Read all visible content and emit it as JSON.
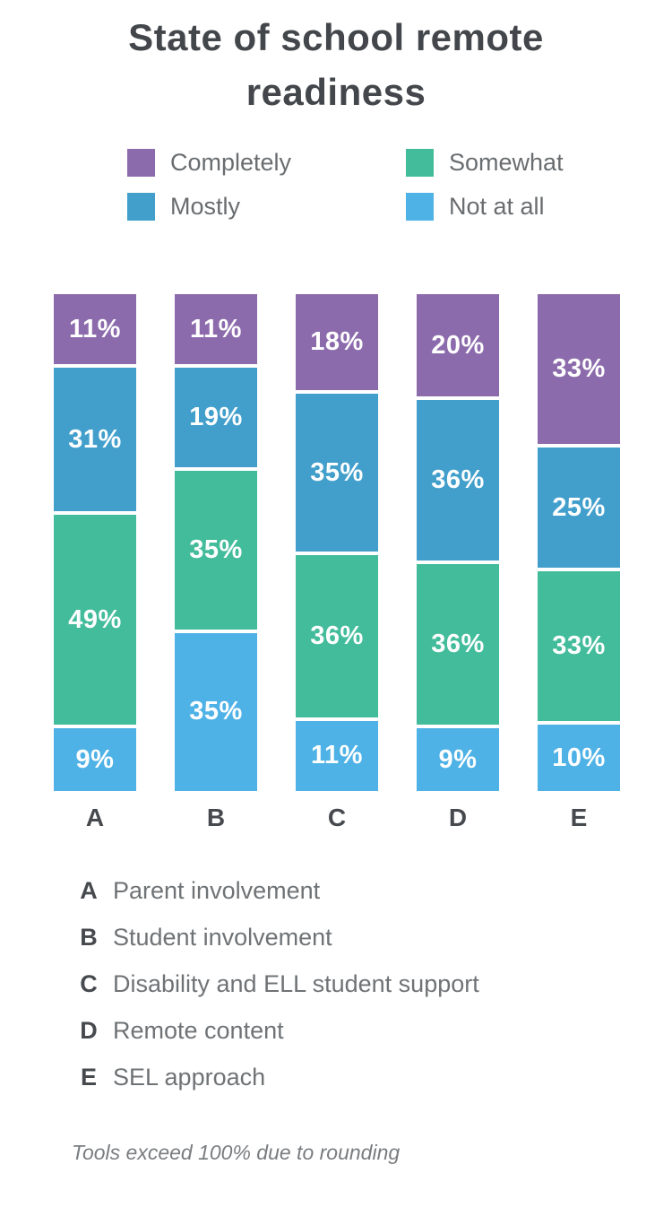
{
  "title": "State of school remote readiness",
  "legend": {
    "columns": [
      [
        {
          "label": "Completely",
          "color": "#8c6bac"
        },
        {
          "label": "Mostly",
          "color": "#429fcc"
        }
      ],
      [
        {
          "label": "Somewhat",
          "color": "#43bc9b"
        },
        {
          "label": "Not at all",
          "color": "#4fb2e6"
        }
      ]
    ]
  },
  "chart_data": {
    "type": "bar",
    "stacked": true,
    "orientation": "vertical",
    "title": "State of school remote readiness",
    "categories": [
      "A",
      "B",
      "C",
      "D",
      "E"
    ],
    "series": [
      {
        "name": "Completely",
        "color": "#8c6bac",
        "values": [
          11,
          11,
          18,
          20,
          33
        ]
      },
      {
        "name": "Mostly",
        "color": "#429fcc",
        "values": [
          31,
          19,
          35,
          36,
          25
        ]
      },
      {
        "name": "Somewhat",
        "color": "#43bc9b",
        "values": [
          49,
          35,
          36,
          36,
          33
        ]
      },
      {
        "name": "Not at all",
        "color": "#4fb2e6",
        "values": [
          9,
          35,
          11,
          9,
          10
        ]
      }
    ],
    "value_suffix": "%",
    "segment_order_top_to_bottom": [
      "Completely",
      "Mostly",
      "Somewhat",
      "Not at all"
    ],
    "legend_position": "top",
    "grid": false
  },
  "key": [
    {
      "letter": "A",
      "description": "Parent involvement"
    },
    {
      "letter": "B",
      "description": "Student involvement"
    },
    {
      "letter": "C",
      "description": "Disability and ELL student support"
    },
    {
      "letter": "D",
      "description": "Remote content"
    },
    {
      "letter": "E",
      "description": "SEL approach"
    }
  ],
  "footnote": "Tools exceed 100% due to rounding",
  "colors": {
    "title_text": "#43474b",
    "legend_text": "#696d70",
    "category_letter_text": "#464a4e",
    "key_description_text": "#6f7376",
    "footnote_text": "#797d80",
    "bar_value_text": "#ffffff",
    "background": "#ffffff"
  }
}
